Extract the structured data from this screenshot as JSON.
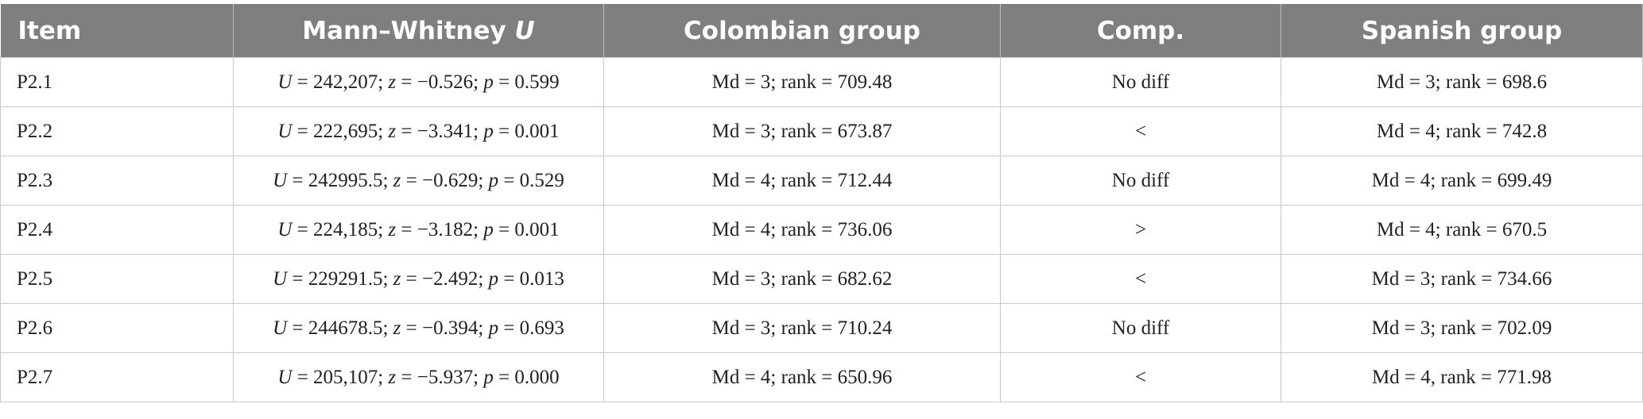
{
  "table": {
    "header": [
      "Item",
      [
        "Mann–Whitney ",
        "U"
      ],
      "Colombian group",
      "Comp.",
      "Spanish group"
    ],
    "rows": [
      [
        "P2.1",
        [
          "U",
          " = 242,207; ",
          "z",
          " = −0.526; ",
          "p",
          " = 0.599"
        ],
        "Md = 3; rank = 709.48",
        "No diff",
        "Md = 3; rank = 698.6"
      ],
      [
        "P2.2",
        [
          "U",
          " = 222,695; ",
          "z",
          " = −3.341; ",
          "p",
          " = 0.001"
        ],
        "Md = 3; rank = 673.87",
        "<",
        "Md = 4; rank = 742.8"
      ],
      [
        "P2.3",
        [
          "U",
          " = 242995.5; ",
          "z",
          " = −0.629; ",
          "p",
          " = 0.529"
        ],
        "Md = 4; rank = 712.44",
        "No diff",
        "Md = 4; rank = 699.49"
      ],
      [
        "P2.4",
        [
          "U",
          " = 224,185; ",
          "z",
          " = −3.182; ",
          "p",
          " = 0.001"
        ],
        "Md = 4; rank = 736.06",
        ">",
        "Md = 4; rank = 670.5"
      ],
      [
        "P2.5",
        [
          "U",
          " = 229291.5; ",
          "z",
          " = −2.492; ",
          "p",
          " = 0.013"
        ],
        "Md = 3; rank = 682.62",
        "<",
        "Md = 3; rank = 734.66"
      ],
      [
        "P2.6",
        [
          "U",
          " = 244678.5; ",
          "z",
          " = −0.394; ",
          "p",
          " = 0.693"
        ],
        "Md = 3; rank = 710.24",
        "No diff",
        "Md = 3; rank = 702.09"
      ],
      [
        "P2.7",
        [
          "U",
          " = 205,107; ",
          "z",
          " = −5.937; ",
          "p",
          " = 0.000"
        ],
        "Md = 4; rank = 650.96",
        "<",
        "Md = 4, rank = 771.98"
      ]
    ]
  }
}
